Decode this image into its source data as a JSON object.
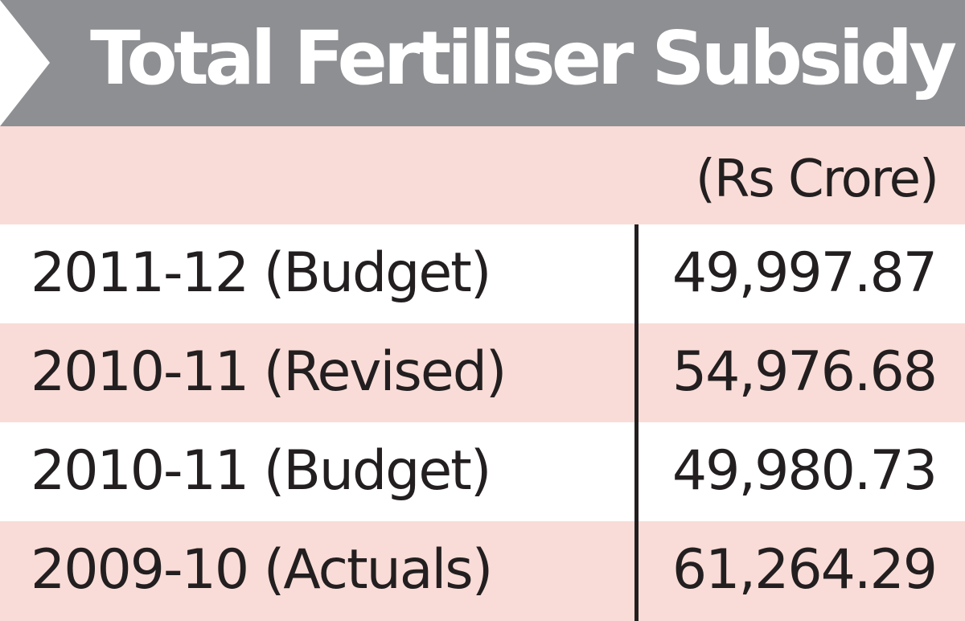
{
  "chart_data": {
    "type": "table",
    "title": "Total Fertiliser Subsidy",
    "unit": "(Rs Crore)",
    "rows": [
      {
        "label": "2011-12 (Budget)",
        "value": "49,997.87"
      },
      {
        "label": "2010-11 (Revised)",
        "value": "54,976.68"
      },
      {
        "label": "2010-11 (Budget)",
        "value": "49,980.73"
      },
      {
        "label": "2009-10 (Actuals)",
        "value": "61,264.29"
      }
    ]
  },
  "colors": {
    "header_bg": "#8e8f93",
    "header_text": "#ffffff",
    "stripe_pink": "#f9dcd7",
    "text": "#231f20"
  }
}
